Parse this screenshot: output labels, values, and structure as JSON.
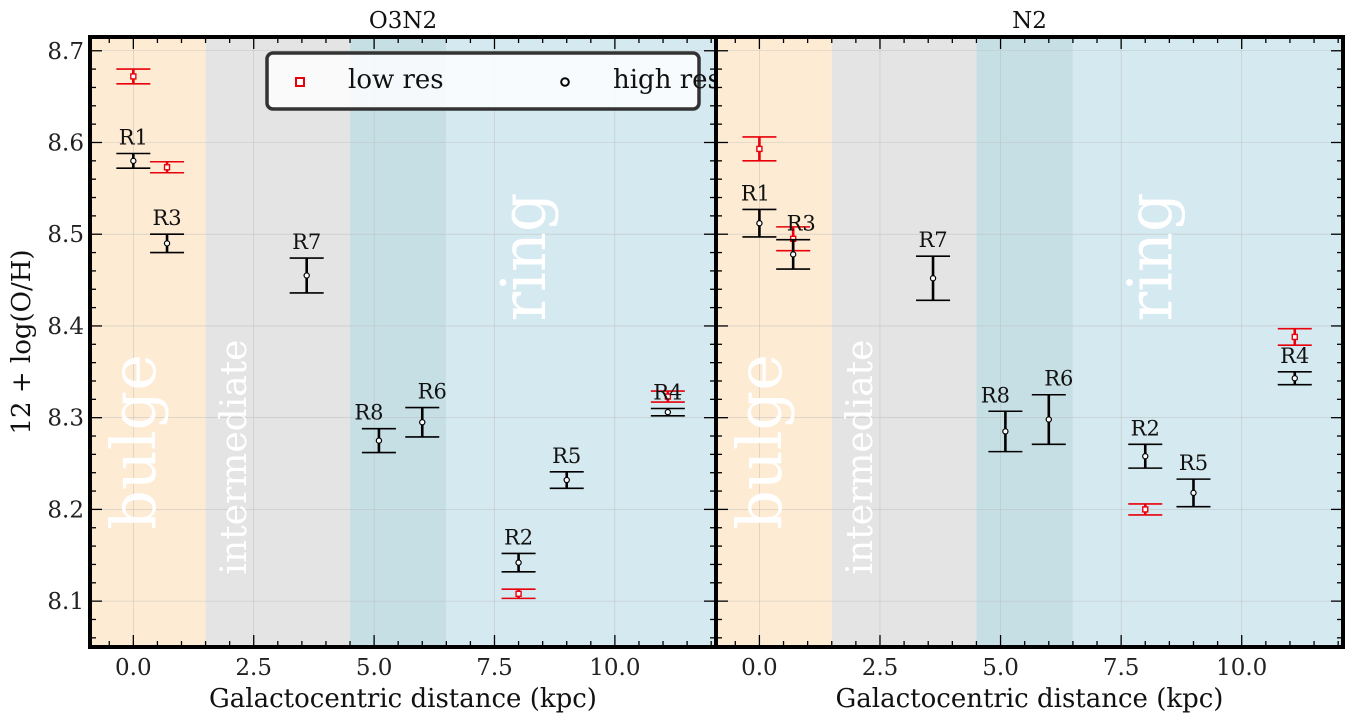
{
  "chart_data": {
    "ylabel": "12 + log(O/H)",
    "xlabel": "Galactocentric distance (kpc)",
    "xlim": [
      -0.9,
      12.1
    ],
    "ylim": [
      8.05,
      8.715
    ],
    "xticks": [
      0.0,
      2.5,
      5.0,
      7.5,
      10.0
    ],
    "xtick_labels": [
      "0.0",
      "2.5",
      "5.0",
      "7.5",
      "10.0"
    ],
    "yticks": [
      8.1,
      8.2,
      8.3,
      8.4,
      8.5,
      8.6,
      8.7
    ],
    "ytick_labels": [
      "8.1",
      "8.2",
      "8.3",
      "8.4",
      "8.5",
      "8.6",
      "8.7"
    ],
    "grid": true,
    "regions": [
      {
        "label": "bulge",
        "x0": -0.9,
        "x1": 1.5,
        "color": "#fdebd3"
      },
      {
        "label": "intermediate",
        "x0": 1.5,
        "x1": 4.5,
        "color": "#e4e4e4"
      },
      {
        "label": "",
        "x0": 4.5,
        "x1": 6.5,
        "color": "#c6dfe5"
      },
      {
        "label": "ring",
        "x0": 6.5,
        "x1": 12.1,
        "color": "#d5e9f0"
      }
    ],
    "legend": {
      "placement": "top-center",
      "entries": [
        {
          "label": "low res",
          "color": "#e8000b",
          "marker": "square"
        },
        {
          "label": "high res",
          "color": "#000000",
          "marker": "circle"
        }
      ]
    },
    "panels": [
      {
        "title": "O3N2",
        "type": "scatter",
        "show_ylabel": true,
        "show_legend": true,
        "series": [
          {
            "name": "low res",
            "color": "#e8000b",
            "points": [
              {
                "region": "R1",
                "x": 0.0,
                "y": 8.672,
                "err": 0.008
              },
              {
                "region": "R3",
                "x": 0.7,
                "y": 8.573,
                "err": 0.006
              },
              {
                "region": "R4",
                "x": 11.1,
                "y": 8.323,
                "err": 0.006
              },
              {
                "region": "R2",
                "x": 8.0,
                "y": 8.108,
                "err": 0.005
              }
            ]
          },
          {
            "name": "high res",
            "color": "#000000",
            "points": [
              {
                "region": "R1",
                "x": 0.0,
                "y": 8.58,
                "err": 0.008,
                "label": "R1"
              },
              {
                "region": "R3",
                "x": 0.7,
                "y": 8.49,
                "err": 0.01,
                "label": "R3"
              },
              {
                "region": "R7",
                "x": 3.6,
                "y": 8.455,
                "err": 0.019,
                "label": "R7"
              },
              {
                "region": "R8",
                "x": 5.1,
                "y": 8.275,
                "err": 0.013,
                "label": "R8"
              },
              {
                "region": "R6",
                "x": 6.0,
                "y": 8.295,
                "err": 0.016,
                "label": "R6"
              },
              {
                "region": "R2",
                "x": 8.0,
                "y": 8.142,
                "err": 0.01,
                "label": "R2"
              },
              {
                "region": "R5",
                "x": 9.0,
                "y": 8.232,
                "err": 0.009,
                "label": "R5"
              },
              {
                "region": "R4",
                "x": 11.1,
                "y": 8.306,
                "err": 0.004,
                "label": "R4"
              }
            ]
          }
        ]
      },
      {
        "title": "N2",
        "type": "scatter",
        "show_ylabel": false,
        "show_legend": false,
        "series": [
          {
            "name": "low res",
            "color": "#e8000b",
            "points": [
              {
                "region": "R1",
                "x": 0.0,
                "y": 8.593,
                "err": 0.013
              },
              {
                "region": "R3",
                "x": 0.7,
                "y": 8.495,
                "err": 0.013
              },
              {
                "region": "R4",
                "x": 11.1,
                "y": 8.388,
                "err": 0.009
              },
              {
                "region": "R2",
                "x": 8.0,
                "y": 8.2,
                "err": 0.006
              }
            ]
          },
          {
            "name": "high res",
            "color": "#000000",
            "points": [
              {
                "region": "R1",
                "x": 0.0,
                "y": 8.512,
                "err": 0.015,
                "label": "R1"
              },
              {
                "region": "R3",
                "x": 0.7,
                "y": 8.478,
                "err": 0.016,
                "label": "R3"
              },
              {
                "region": "R7",
                "x": 3.6,
                "y": 8.452,
                "err": 0.024,
                "label": "R7"
              },
              {
                "region": "R8",
                "x": 5.1,
                "y": 8.285,
                "err": 0.022,
                "label": "R8"
              },
              {
                "region": "R6",
                "x": 6.0,
                "y": 8.298,
                "err": 0.027,
                "label": "R6"
              },
              {
                "region": "R2",
                "x": 8.0,
                "y": 8.258,
                "err": 0.013,
                "label": "R2"
              },
              {
                "region": "R5",
                "x": 9.0,
                "y": 8.218,
                "err": 0.015,
                "label": "R5"
              },
              {
                "region": "R4",
                "x": 11.1,
                "y": 8.343,
                "err": 0.007,
                "label": "R4"
              }
            ]
          }
        ]
      }
    ]
  }
}
